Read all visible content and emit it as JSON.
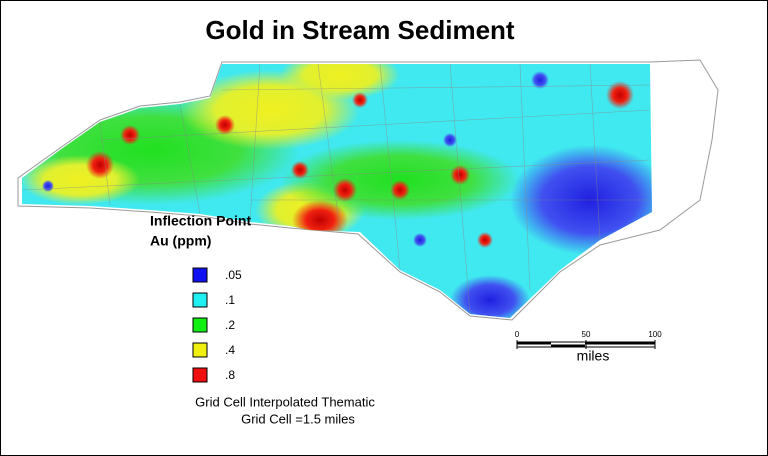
{
  "title": "Gold in Stream Sediment",
  "legend": {
    "title_lines": [
      "Inflection Point",
      "Au (ppm)"
    ],
    "items": [
      {
        "label": ".05",
        "color": "#1010f0"
      },
      {
        "label": ".1",
        "color": "#20f0f0"
      },
      {
        "label": ".2",
        "color": "#10f010"
      },
      {
        "label": ".4",
        "color": "#f0f010"
      },
      {
        "label": ".8",
        "color": "#f01010"
      }
    ]
  },
  "scale": {
    "ticks": [
      0,
      50,
      100
    ],
    "unit": "miles"
  },
  "caption": [
    "Grid Cell Interpolated Thematic",
    "Grid Cell =1.5 miles"
  ]
}
